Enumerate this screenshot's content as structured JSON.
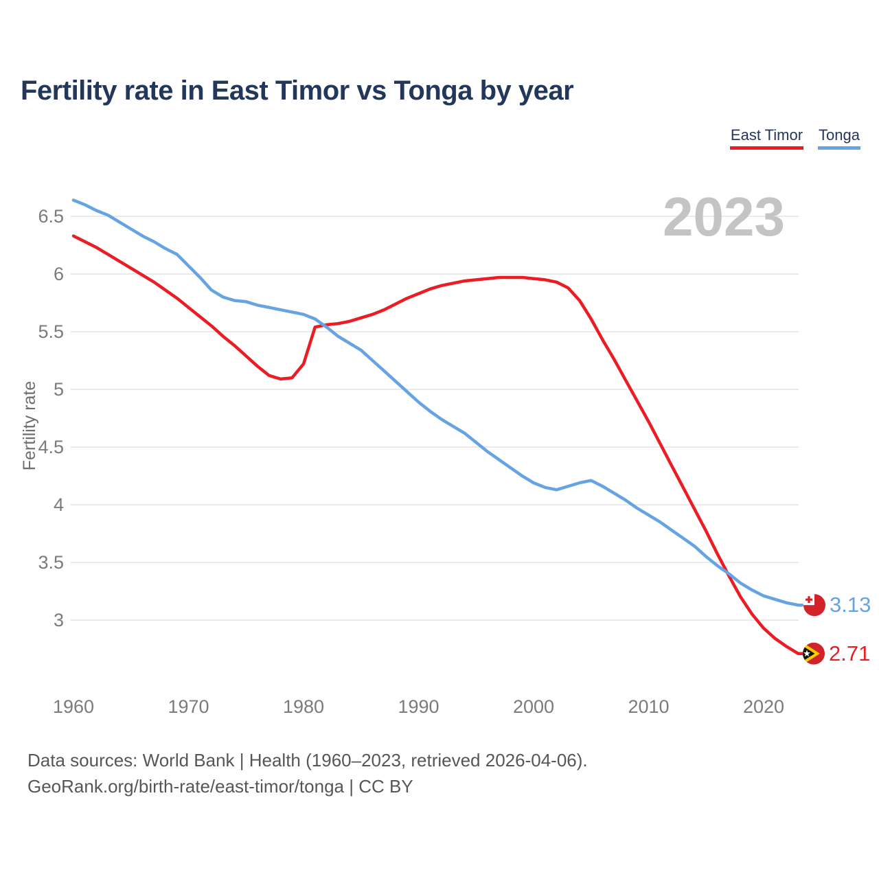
{
  "title": "Fertility rate in East Timor vs Tonga by year",
  "watermark": "2023",
  "source": {
    "line1": "Data sources: World Bank | Health (1960–2023, retrieved 2026-04-06).",
    "line2": "GeoRank.org/birth-rate/east-timor/tonga | CC BY"
  },
  "colors": {
    "east_timor": "#ec1c24",
    "tonga": "#66a3e2",
    "title_navy": "#22375a",
    "axis_gray": "#7b7b7b",
    "gridline": "#eaeaea",
    "watermark_gray": "#c4c4c4",
    "source_gray": "#565656",
    "flag_red": "#d2232a",
    "flag_yellow": "#ffcb00"
  },
  "chart_data": {
    "type": "line",
    "title": "Fertility rate in East Timor vs Tonga by year",
    "xlabel": "",
    "ylabel": "Fertility rate",
    "xlim": [
      1960,
      2023
    ],
    "ylim": [
      2.6,
      6.8
    ],
    "grid": "horizontal-only",
    "legend_position": "top-right",
    "x_ticks": [
      1960,
      1970,
      1980,
      1990,
      2000,
      2010,
      2020
    ],
    "y_ticks": [
      6.5,
      6,
      5.5,
      5,
      4.5,
      4,
      3.5,
      3
    ],
    "x": [
      1960,
      1961,
      1962,
      1963,
      1964,
      1965,
      1966,
      1967,
      1968,
      1969,
      1970,
      1971,
      1972,
      1973,
      1974,
      1975,
      1976,
      1977,
      1978,
      1979,
      1980,
      1981,
      1982,
      1983,
      1984,
      1985,
      1986,
      1987,
      1988,
      1989,
      1990,
      1991,
      1992,
      1993,
      1994,
      1995,
      1996,
      1997,
      1998,
      1999,
      2000,
      2001,
      2002,
      2003,
      2004,
      2005,
      2006,
      2007,
      2008,
      2009,
      2010,
      2011,
      2012,
      2013,
      2014,
      2015,
      2016,
      2017,
      2018,
      2019,
      2020,
      2021,
      2022,
      2023
    ],
    "series": [
      {
        "id": "east-timor",
        "name": "East Timor",
        "color": "#ec1c24",
        "end_label": "2.71",
        "end_value": 2.71,
        "flag": "east-timor-flag",
        "values": [
          6.33,
          6.28,
          6.23,
          6.17,
          6.11,
          6.05,
          5.99,
          5.93,
          5.86,
          5.79,
          5.71,
          5.63,
          5.55,
          5.46,
          5.38,
          5.29,
          5.2,
          5.12,
          5.09,
          5.1,
          5.22,
          5.54,
          5.56,
          5.57,
          5.59,
          5.62,
          5.65,
          5.69,
          5.74,
          5.79,
          5.83,
          5.87,
          5.9,
          5.92,
          5.94,
          5.95,
          5.96,
          5.97,
          5.97,
          5.97,
          5.96,
          5.95,
          5.93,
          5.88,
          5.77,
          5.61,
          5.43,
          5.26,
          5.08,
          4.9,
          4.72,
          4.53,
          4.34,
          4.15,
          3.96,
          3.77,
          3.57,
          3.38,
          3.2,
          3.05,
          2.93,
          2.84,
          2.77,
          2.71
        ]
      },
      {
        "id": "tonga",
        "name": "Tonga",
        "color": "#66a3e2",
        "end_label": "3.13",
        "end_value": 3.13,
        "flag": "tonga-flag",
        "values": [
          6.64,
          6.6,
          6.55,
          6.51,
          6.45,
          6.39,
          6.33,
          6.28,
          6.22,
          6.17,
          6.07,
          5.97,
          5.86,
          5.8,
          5.77,
          5.76,
          5.73,
          5.71,
          5.69,
          5.67,
          5.65,
          5.61,
          5.54,
          5.46,
          5.4,
          5.34,
          5.25,
          5.16,
          5.07,
          4.98,
          4.89,
          4.81,
          4.74,
          4.68,
          4.62,
          4.54,
          4.46,
          4.39,
          4.32,
          4.25,
          4.19,
          4.15,
          4.13,
          4.16,
          4.19,
          4.21,
          4.16,
          4.1,
          4.04,
          3.97,
          3.91,
          3.85,
          3.78,
          3.71,
          3.64,
          3.55,
          3.47,
          3.4,
          3.32,
          3.26,
          3.21,
          3.18,
          3.15,
          3.13
        ]
      }
    ]
  }
}
